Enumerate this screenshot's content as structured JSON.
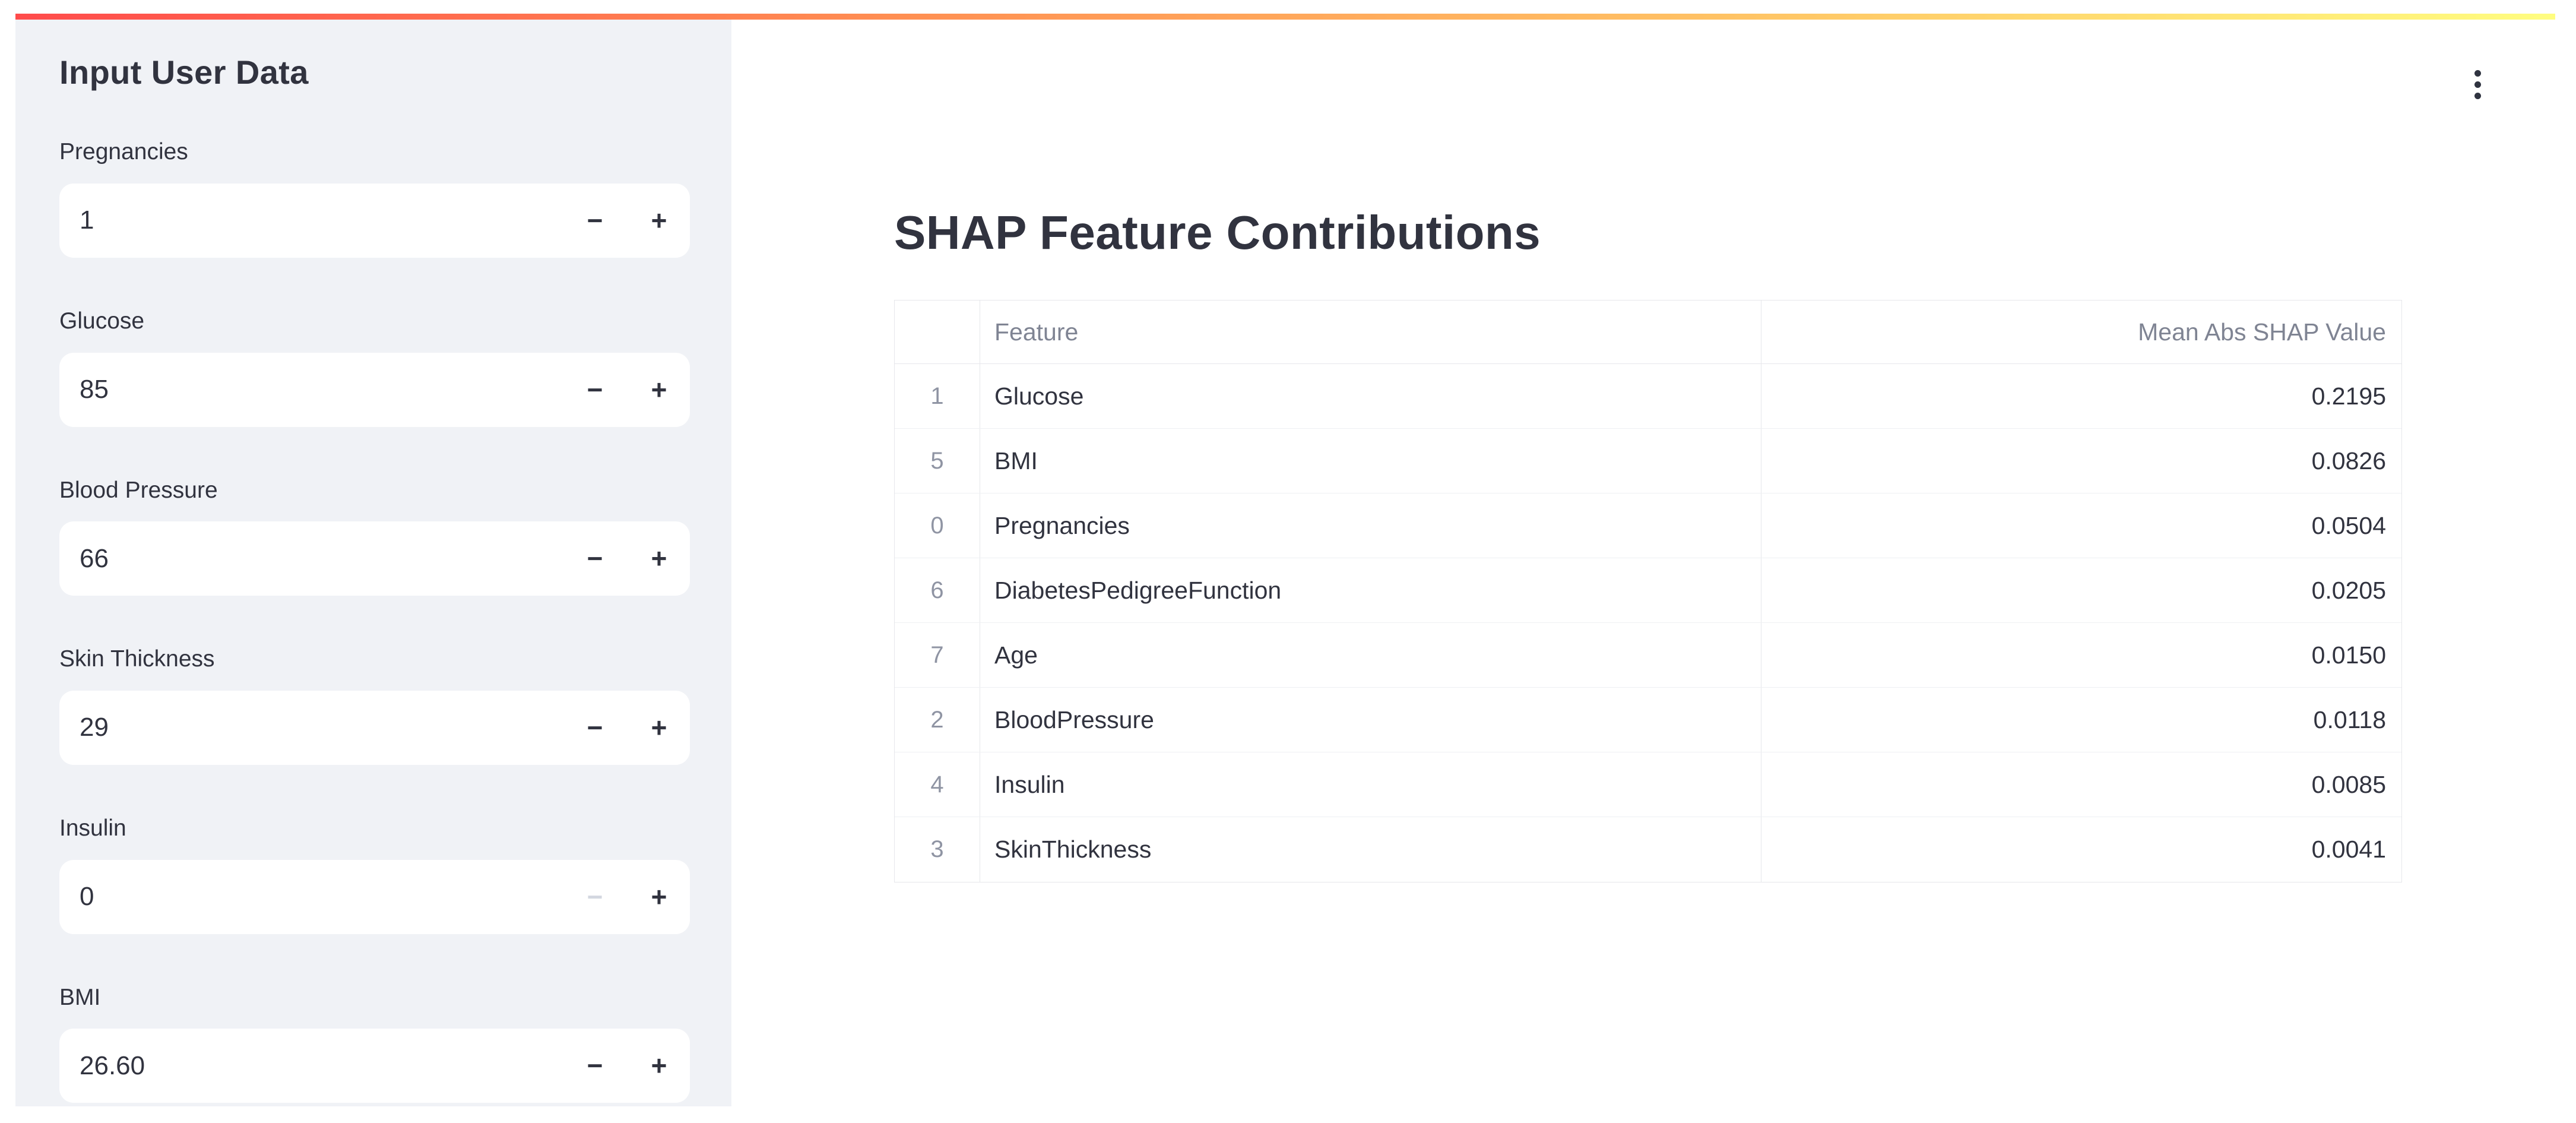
{
  "app": {
    "decoration_gradient": [
      "#ff4b4b",
      "#fffd80"
    ],
    "sidebar_background": "#f0f2f6",
    "text_color": "#31333f",
    "muted_text_color": "#7f8493"
  },
  "sidebar": {
    "title": "Input User Data",
    "controls": {
      "minus": "−",
      "plus": "+"
    },
    "inputs": [
      {
        "label": "Pregnancies",
        "value": "1",
        "minus_disabled": false
      },
      {
        "label": "Glucose",
        "value": "85",
        "minus_disabled": false
      },
      {
        "label": "Blood Pressure",
        "value": "66",
        "minus_disabled": false
      },
      {
        "label": "Skin Thickness",
        "value": "29",
        "minus_disabled": false
      },
      {
        "label": "Insulin",
        "value": "0",
        "minus_disabled": true
      },
      {
        "label": "BMI",
        "value": "26.60",
        "minus_disabled": false
      }
    ]
  },
  "main": {
    "title": "SHAP Feature Contributions",
    "menu_icon": "kebab-menu",
    "table": {
      "columns": [
        "",
        "Feature",
        "Mean Abs SHAP Value"
      ],
      "rows": [
        {
          "index": "1",
          "feature": "Glucose",
          "value": "0.2195"
        },
        {
          "index": "5",
          "feature": "BMI",
          "value": "0.0826"
        },
        {
          "index": "0",
          "feature": "Pregnancies",
          "value": "0.0504"
        },
        {
          "index": "6",
          "feature": "DiabetesPedigreeFunction",
          "value": "0.0205"
        },
        {
          "index": "7",
          "feature": "Age",
          "value": "0.0150"
        },
        {
          "index": "2",
          "feature": "BloodPressure",
          "value": "0.0118"
        },
        {
          "index": "4",
          "feature": "Insulin",
          "value": "0.0085"
        },
        {
          "index": "3",
          "feature": "SkinThickness",
          "value": "0.0041"
        }
      ]
    }
  }
}
